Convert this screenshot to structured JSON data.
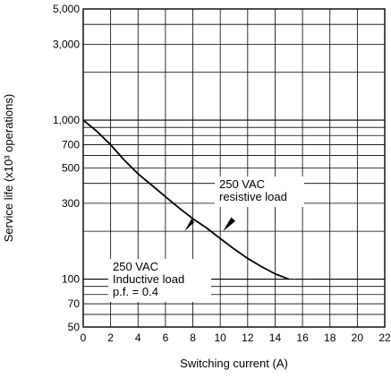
{
  "chart_data": {
    "type": "line",
    "title": "",
    "xlabel": "Switching current (A)",
    "ylabel": "Service life (x10³ operations)",
    "xlim": [
      0,
      22
    ],
    "ylim": [
      50,
      5000
    ],
    "yscale": "log",
    "grid": true,
    "x_ticks": [
      0,
      2,
      4,
      6,
      8,
      10,
      12,
      14,
      16,
      18,
      20,
      22
    ],
    "x_tick_labels": [
      "0",
      "2",
      "4",
      "6",
      "8",
      "10",
      "12",
      "14",
      "16",
      "18",
      "20",
      "22"
    ],
    "y_ticks": [
      50,
      70,
      100,
      300,
      500,
      700,
      1000,
      3000,
      5000
    ],
    "y_tick_labels": [
      "50",
      "70",
      "100",
      "300",
      "500",
      "700",
      "1,000",
      "3,000",
      "5,000"
    ],
    "series": [
      {
        "name": "",
        "x": [
          0,
          1,
          2,
          3,
          4,
          5,
          6,
          7,
          8,
          9,
          10,
          11,
          12,
          13,
          14,
          15
        ],
        "y": [
          1000,
          850,
          700,
          560,
          460,
          390,
          330,
          280,
          240,
          210,
          180,
          155,
          135,
          120,
          108,
          100
        ]
      }
    ],
    "annotations": [
      {
        "lines": [
          "250 VAC",
          "resistive load"
        ]
      },
      {
        "lines": [
          "250 VAC",
          "Inductive load",
          "p.f. = 0.4"
        ]
      }
    ]
  }
}
